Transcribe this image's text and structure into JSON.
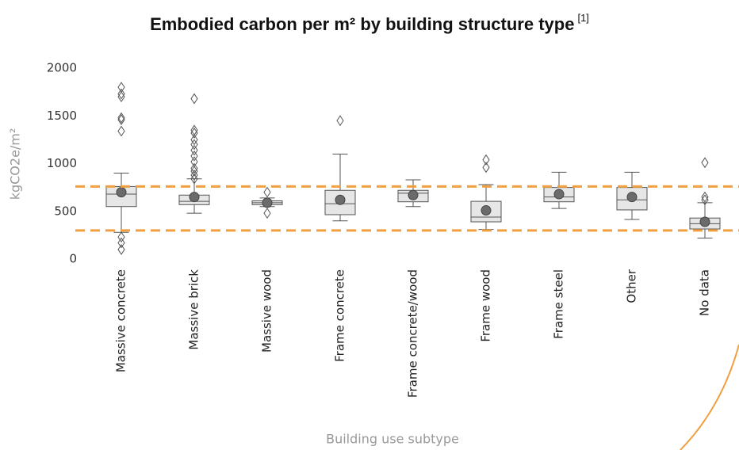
{
  "chart_data": {
    "type": "box",
    "title": "Embodied carbon per m² by building structure type",
    "title_note": "[1]",
    "y_label": "kgCO2e/m²",
    "x_label": "Building use subtype",
    "categories": [
      "Massive concrete",
      "Massive brick",
      "Massive wood",
      "Frame concrete",
      "Frame concrete/wood",
      "Frame wood",
      "Frame steel",
      "Other",
      "No data"
    ],
    "boxes": [
      {
        "min": 280,
        "q1": 550,
        "median": 680,
        "q3": 760,
        "max": 900,
        "mean": 700,
        "outliers": [
          1800,
          1730,
          1700,
          1480,
          1460,
          1340,
          230,
          170,
          100
        ]
      },
      {
        "min": 480,
        "q1": 570,
        "median": 605,
        "q3": 670,
        "max": 840,
        "mean": 650,
        "outliers": [
          1680,
          1350,
          1320,
          1250,
          1200,
          1140,
          1080,
          1020,
          950,
          920,
          880,
          840
        ]
      },
      {
        "min": 550,
        "q1": 570,
        "median": 590,
        "q3": 610,
        "max": 640,
        "mean": 590,
        "outliers": [
          700,
          480
        ]
      },
      {
        "min": 400,
        "q1": 465,
        "median": 580,
        "q3": 720,
        "max": 1100,
        "mean": 620,
        "outliers": [
          1450
        ]
      },
      {
        "min": 550,
        "q1": 600,
        "median": 690,
        "q3": 720,
        "max": 830,
        "mean": 670,
        "outliers": []
      },
      {
        "min": 310,
        "q1": 390,
        "median": 440,
        "q3": 605,
        "max": 780,
        "mean": 510,
        "outliers": [
          1040,
          960
        ]
      },
      {
        "min": 530,
        "q1": 600,
        "median": 650,
        "q3": 750,
        "max": 910,
        "mean": 680,
        "outliers": []
      },
      {
        "min": 415,
        "q1": 515,
        "median": 620,
        "q3": 750,
        "max": 910,
        "mean": 650,
        "outliers": []
      },
      {
        "min": 220,
        "q1": 315,
        "median": 370,
        "q3": 430,
        "max": 590,
        "mean": 390,
        "outliers": [
          1010,
          650,
          620
        ]
      }
    ],
    "box_color": "#e6e6e6",
    "line_color": "#555555",
    "mean_color": "#6b6b6b",
    "reference_lines": [
      760,
      300
    ],
    "reference_color": "#f0a040",
    "ylim": [
      0,
      2000
    ],
    "yticks": [
      0,
      500,
      1000,
      1500,
      2000
    ],
    "grid": false
  }
}
